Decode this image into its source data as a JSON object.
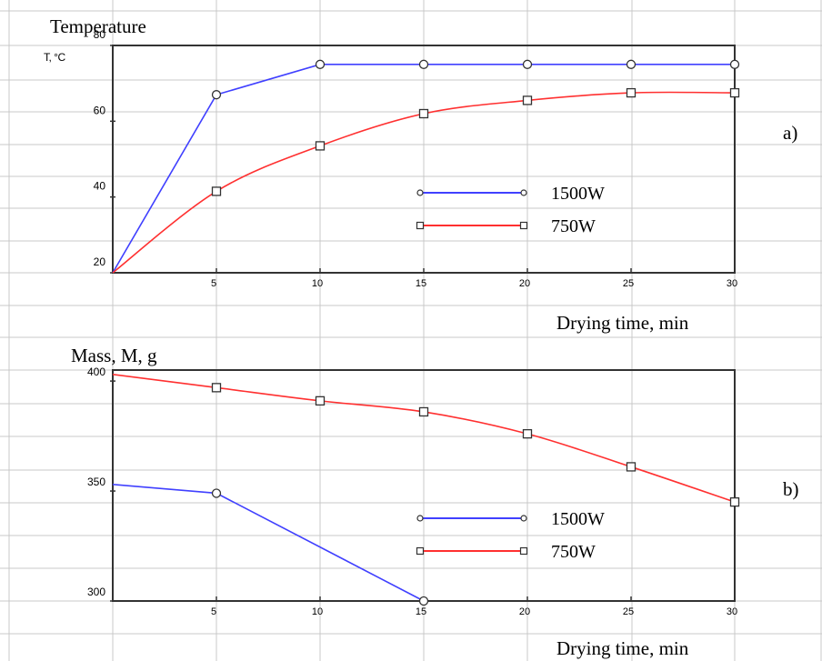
{
  "chart_data": [
    {
      "type": "line",
      "title": "Temperature",
      "panel_label": "a)",
      "ylabel": "T, °C",
      "xlabel": "Drying time, min",
      "xlim": [
        0,
        30
      ],
      "ylim": [
        20,
        80
      ],
      "x_ticks": [
        "5",
        "10",
        "15",
        "20",
        "25",
        "30"
      ],
      "y_ticks": [
        "20",
        "40",
        "60",
        "80"
      ],
      "series": [
        {
          "name": "1500W",
          "color": "#4040ff",
          "marker": "circle",
          "x": [
            0,
            5,
            10,
            15,
            20,
            25,
            30
          ],
          "y": [
            20,
            67,
            75,
            75,
            75,
            75,
            75
          ]
        },
        {
          "name": "750W",
          "color": "#ff3030",
          "marker": "square",
          "x": [
            0,
            5,
            10,
            15,
            20,
            25,
            30
          ],
          "y": [
            20,
            41.5,
            53.5,
            62,
            65.5,
            67.5,
            67.5
          ]
        }
      ],
      "legend": "center-right"
    },
    {
      "type": "line",
      "title": "",
      "panel_label": "b)",
      "ylabel": "Mass, M, g",
      "xlabel": "Drying time, min",
      "xlim": [
        0,
        30
      ],
      "ylim": [
        300,
        405
      ],
      "x_ticks": [
        "5",
        "10",
        "15",
        "20",
        "25",
        "30"
      ],
      "y_ticks": [
        "300",
        "350",
        "400"
      ],
      "series": [
        {
          "name": "1500W",
          "color": "#4040ff",
          "marker": "circle",
          "x": [
            0,
            5,
            15
          ],
          "y": [
            353,
            349,
            300
          ]
        },
        {
          "name": "750W",
          "color": "#ff3030",
          "marker": "square",
          "x": [
            0,
            5,
            10,
            15,
            20,
            25,
            30
          ],
          "y": [
            403,
            397,
            391,
            386,
            376,
            361,
            345
          ]
        }
      ],
      "legend": "lower-right"
    }
  ]
}
